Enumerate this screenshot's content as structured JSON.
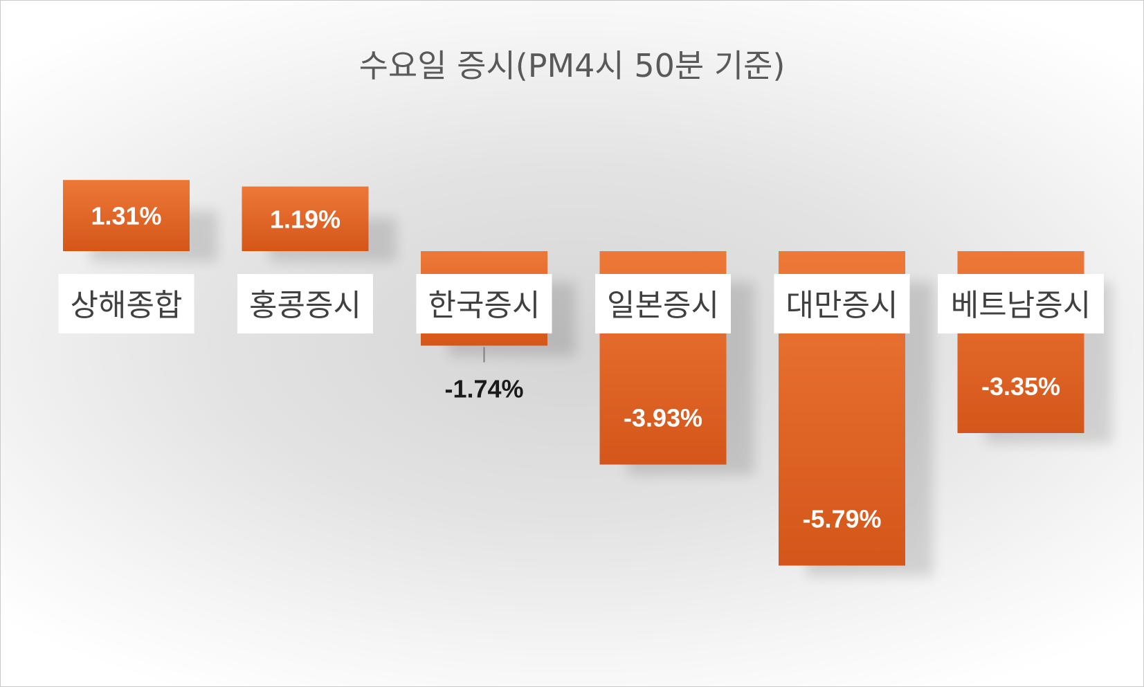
{
  "chart_data": {
    "type": "bar",
    "title": "수요일 증시(PM4시 50분 기준)",
    "categories": [
      "상해종합",
      "홍콩증시",
      "한국증시",
      "일본증시",
      "대만증시",
      "베트남증시"
    ],
    "values": [
      1.31,
      1.19,
      -1.74,
      -3.93,
      -5.79,
      -3.35
    ],
    "value_labels": [
      "1.31%",
      "1.19%",
      "-1.74%",
      "-3.93%",
      "-5.79%",
      "-3.35%"
    ],
    "xlabel": "",
    "ylabel": "",
    "ylim": [
      -6.0,
      1.6
    ],
    "grid": false,
    "legend": "none",
    "colors": {
      "bar_top": "#ed7837",
      "bar_bottom": "#d4561a",
      "label_inside": "#ffffff",
      "label_outside": "#1a1a1a",
      "title": "#595959"
    }
  }
}
